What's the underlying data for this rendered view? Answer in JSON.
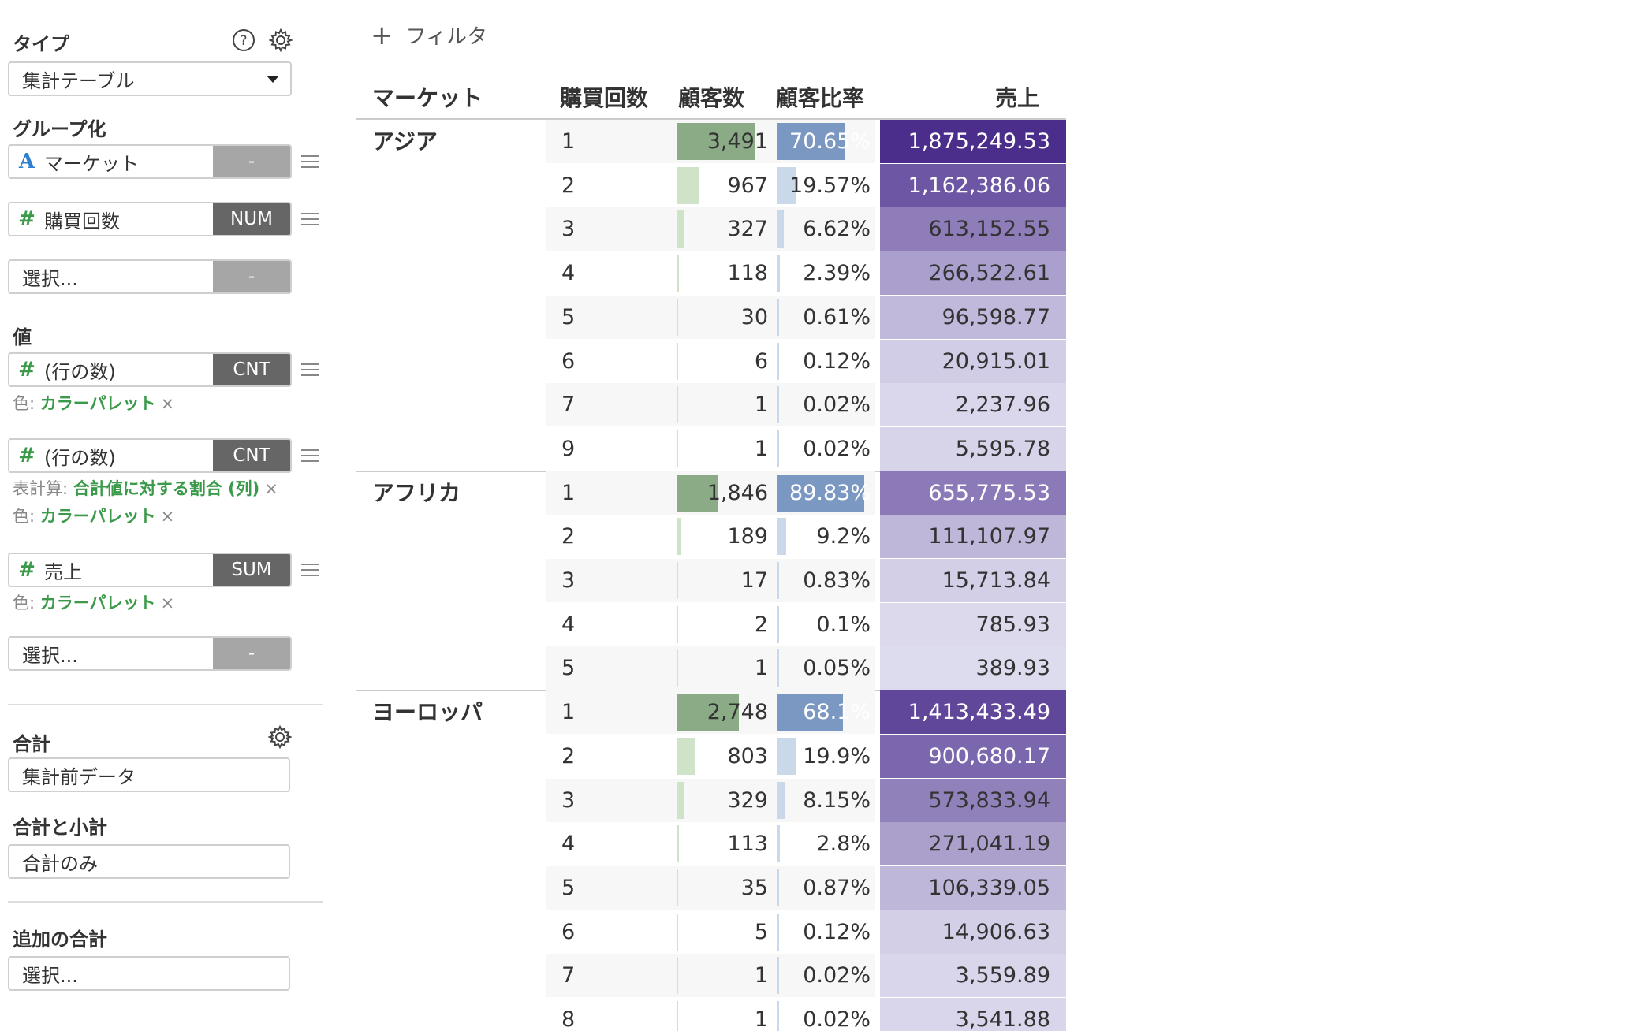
{
  "panel": {
    "type_title": "タイプ",
    "type_value": "集計テーブル",
    "group_title": "グループ化",
    "group_fields": [
      {
        "kind": "str",
        "icon": "A",
        "name": "マーケット",
        "agg": "-"
      },
      {
        "kind": "num",
        "icon": "#",
        "name": "購買回数",
        "agg": "NUM"
      },
      {
        "kind": "empty",
        "icon": "",
        "name": "選択...",
        "agg": "-"
      }
    ],
    "value_title": "値",
    "value_fields": [
      {
        "kind": "num",
        "icon": "#",
        "name": "(行の数)",
        "agg": "CNT"
      },
      {
        "kind": "num",
        "icon": "#",
        "name": "(行の数)",
        "agg": "CNT"
      },
      {
        "kind": "num",
        "icon": "#",
        "name": "売上",
        "agg": "SUM"
      },
      {
        "kind": "empty",
        "icon": "",
        "name": "選択...",
        "agg": "-"
      }
    ],
    "color_label": "色:",
    "color_value": "カラーパレット",
    "calc_label": "表計算:",
    "calc_value": "合計値に対する割合 (列)",
    "remove_glyph": "×",
    "total_title": "合計",
    "total_value": "集計前データ",
    "subtotal_title": "合計と小計",
    "subtotal_value": "合計のみ",
    "extra_title": "追加の合計",
    "extra_value": "選択..."
  },
  "filter": {
    "plus": "+",
    "label": "フィルタ"
  },
  "table": {
    "headers": {
      "market": "マーケット",
      "count": "購買回数",
      "customers": "顧客数",
      "ratio": "顧客比率",
      "sales": "売上"
    },
    "groups": [
      {
        "market": "アジア",
        "rows": [
          {
            "count": "1",
            "customers": "3,491",
            "ratio": "70.65%",
            "sales": "1,875,249.53",
            "c": 3491,
            "r": 70.65,
            "s": 1875249.53
          },
          {
            "count": "2",
            "customers": "967",
            "ratio": "19.57%",
            "sales": "1,162,386.06",
            "c": 967,
            "r": 19.57,
            "s": 1162386.06
          },
          {
            "count": "3",
            "customers": "327",
            "ratio": "6.62%",
            "sales": "613,152.55",
            "c": 327,
            "r": 6.62,
            "s": 613152.55
          },
          {
            "count": "4",
            "customers": "118",
            "ratio": "2.39%",
            "sales": "266,522.61",
            "c": 118,
            "r": 2.39,
            "s": 266522.61
          },
          {
            "count": "5",
            "customers": "30",
            "ratio": "0.61%",
            "sales": "96,598.77",
            "c": 30,
            "r": 0.61,
            "s": 96598.77
          },
          {
            "count": "6",
            "customers": "6",
            "ratio": "0.12%",
            "sales": "20,915.01",
            "c": 6,
            "r": 0.12,
            "s": 20915.01
          },
          {
            "count": "7",
            "customers": "1",
            "ratio": "0.02%",
            "sales": "2,237.96",
            "c": 1,
            "r": 0.02,
            "s": 2237.96
          },
          {
            "count": "9",
            "customers": "1",
            "ratio": "0.02%",
            "sales": "5,595.78",
            "c": 1,
            "r": 0.02,
            "s": 5595.78
          }
        ]
      },
      {
        "market": "アフリカ",
        "rows": [
          {
            "count": "1",
            "customers": "1,846",
            "ratio": "89.83%",
            "sales": "655,775.53",
            "c": 1846,
            "r": 89.83,
            "s": 655775.53
          },
          {
            "count": "2",
            "customers": "189",
            "ratio": "9.2%",
            "sales": "111,107.97",
            "c": 189,
            "r": 9.2,
            "s": 111107.97
          },
          {
            "count": "3",
            "customers": "17",
            "ratio": "0.83%",
            "sales": "15,713.84",
            "c": 17,
            "r": 0.83,
            "s": 15713.84
          },
          {
            "count": "4",
            "customers": "2",
            "ratio": "0.1%",
            "sales": "785.93",
            "c": 2,
            "r": 0.1,
            "s": 785.93
          },
          {
            "count": "5",
            "customers": "1",
            "ratio": "0.05%",
            "sales": "389.93",
            "c": 1,
            "r": 0.05,
            "s": 389.93
          }
        ]
      },
      {
        "market": "ヨーロッパ",
        "rows": [
          {
            "count": "1",
            "customers": "2,748",
            "ratio": "68.1%",
            "sales": "1,413,433.49",
            "c": 2748,
            "r": 68.1,
            "s": 1413433.49
          },
          {
            "count": "2",
            "customers": "803",
            "ratio": "19.9%",
            "sales": "900,680.17",
            "c": 803,
            "r": 19.9,
            "s": 900680.17
          },
          {
            "count": "3",
            "customers": "329",
            "ratio": "8.15%",
            "sales": "573,833.94",
            "c": 329,
            "r": 8.15,
            "s": 573833.94
          },
          {
            "count": "4",
            "customers": "113",
            "ratio": "2.8%",
            "sales": "271,041.19",
            "c": 113,
            "r": 2.8,
            "s": 271041.19
          },
          {
            "count": "5",
            "customers": "35",
            "ratio": "0.87%",
            "sales": "106,339.05",
            "c": 35,
            "r": 0.87,
            "s": 106339.05
          },
          {
            "count": "6",
            "customers": "5",
            "ratio": "0.12%",
            "sales": "14,906.63",
            "c": 5,
            "r": 0.12,
            "s": 14906.63
          },
          {
            "count": "7",
            "customers": "1",
            "ratio": "0.02%",
            "sales": "3,559.89",
            "c": 1,
            "r": 0.02,
            "s": 3559.89
          },
          {
            "count": "8",
            "customers": "1",
            "ratio": "0.02%",
            "sales": "3,541.88",
            "c": 1,
            "r": 0.02,
            "s": 3541.88
          }
        ]
      }
    ]
  },
  "colors": {
    "green_bar": "#8aab86",
    "blue_bar": "#7b98c3",
    "sales_dark": "#4b2e8c",
    "sales_light": "#dddbee"
  }
}
